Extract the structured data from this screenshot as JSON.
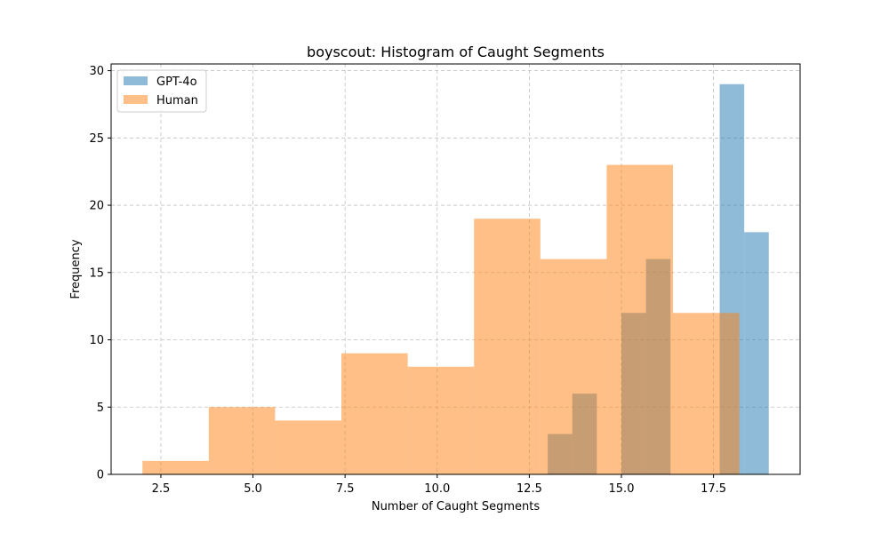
{
  "chart_data": {
    "type": "bar",
    "title": "boyscout: Histogram of Caught Segments",
    "xlabel": "Number of Caught Segments",
    "ylabel": "Frequency",
    "xlim": [
      1.15,
      19.85
    ],
    "ylim": [
      0,
      30.5
    ],
    "xticks": [
      2.5,
      5.0,
      7.5,
      10.0,
      12.5,
      15.0,
      17.5
    ],
    "xtick_labels": [
      "2.5",
      "5.0",
      "7.5",
      "10.0",
      "12.5",
      "15.0",
      "17.5"
    ],
    "yticks": [
      0,
      5,
      10,
      15,
      20,
      25,
      30
    ],
    "ytick_labels": [
      "0",
      "5",
      "10",
      "15",
      "20",
      "25",
      "30"
    ],
    "grid": true,
    "legend_position": "top-left",
    "series": [
      {
        "name": "GPT-4o",
        "color": "#1f77b4",
        "opacity": 0.5,
        "bins": [
          {
            "x0": 13.0,
            "x1": 13.667,
            "count": 3
          },
          {
            "x0": 13.667,
            "x1": 14.333,
            "count": 6
          },
          {
            "x0": 14.333,
            "x1": 15.0,
            "count": 0
          },
          {
            "x0": 15.0,
            "x1": 15.667,
            "count": 12
          },
          {
            "x0": 15.667,
            "x1": 16.333,
            "count": 16
          },
          {
            "x0": 16.333,
            "x1": 17.0,
            "count": 0
          },
          {
            "x0": 17.0,
            "x1": 17.667,
            "count": 0
          },
          {
            "x0": 17.667,
            "x1": 18.333,
            "count": 29
          },
          {
            "x0": 18.333,
            "x1": 19.0,
            "count": 18
          }
        ],
        "extra_bins_note": ""
      },
      {
        "name": "Human",
        "color": "#ff7f0e",
        "opacity": 0.5,
        "bins": [
          {
            "x0": 2.0,
            "x1": 3.8,
            "count": 1
          },
          {
            "x0": 3.8,
            "x1": 5.6,
            "count": 5
          },
          {
            "x0": 5.6,
            "x1": 7.4,
            "count": 4
          },
          {
            "x0": 7.4,
            "x1": 9.2,
            "count": 9
          },
          {
            "x0": 9.2,
            "x1": 11.0,
            "count": 8
          },
          {
            "x0": 11.0,
            "x1": 12.8,
            "count": 19
          },
          {
            "x0": 12.8,
            "x1": 14.6,
            "count": 16
          },
          {
            "x0": 14.6,
            "x1": 16.4,
            "count": 23
          },
          {
            "x0": 16.4,
            "x1": 18.2,
            "count": 12
          }
        ]
      }
    ]
  }
}
